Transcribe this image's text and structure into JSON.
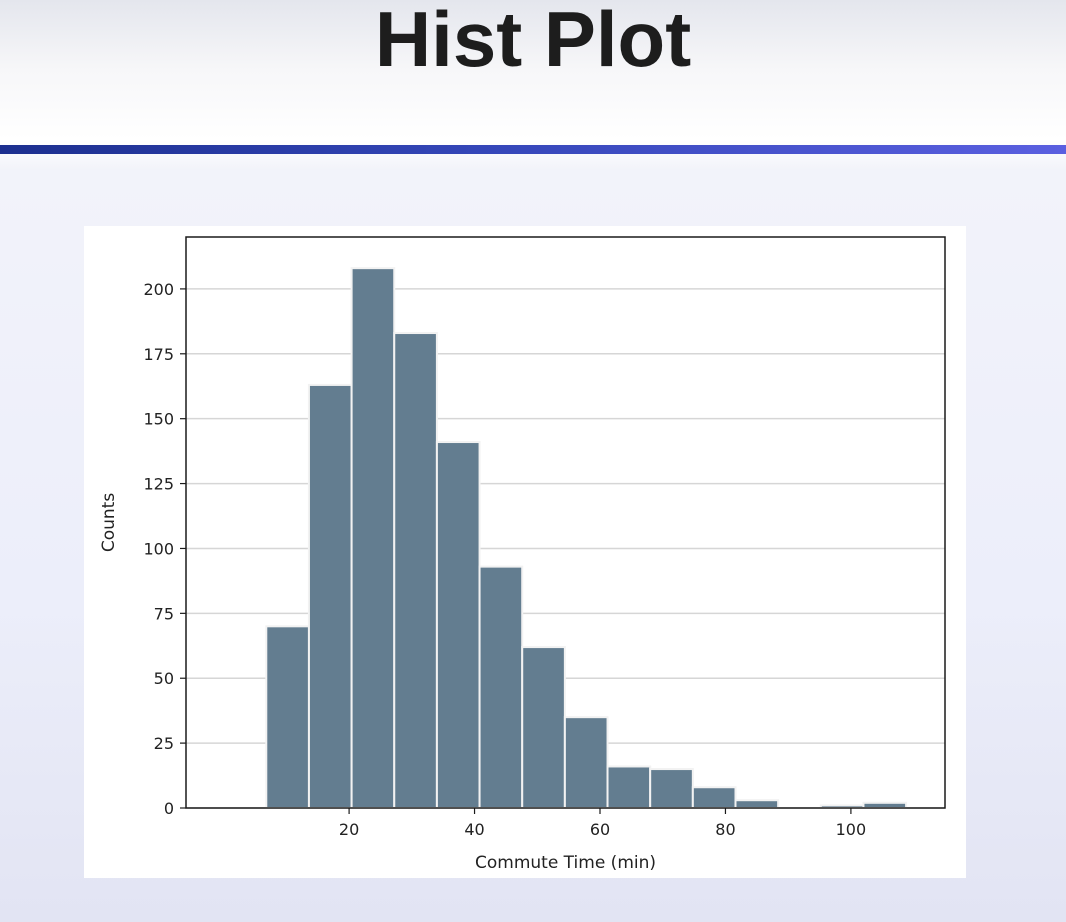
{
  "slide": {
    "title": "Hist Plot",
    "rule_color_start": "#1c2f8f",
    "rule_color_end": "#5a5fe0"
  },
  "chart_data": {
    "type": "bar",
    "subtype": "histogram",
    "xlabel": "Commute Time (min)",
    "ylabel": "Counts",
    "xlim": [
      -6,
      115
    ],
    "ylim": [
      0,
      220
    ],
    "xticks": [
      20,
      40,
      60,
      80,
      100
    ],
    "yticks": [
      0,
      25,
      50,
      75,
      100,
      125,
      150,
      175,
      200
    ],
    "grid": "horizontal",
    "bar_color": "#637d90",
    "bins": [
      {
        "x0": 6.8,
        "x1": 13.6,
        "count": 70
      },
      {
        "x0": 13.6,
        "x1": 20.4,
        "count": 163
      },
      {
        "x0": 20.4,
        "x1": 27.2,
        "count": 208
      },
      {
        "x0": 27.2,
        "x1": 34.0,
        "count": 183
      },
      {
        "x0": 34.0,
        "x1": 40.8,
        "count": 141
      },
      {
        "x0": 40.8,
        "x1": 47.6,
        "count": 93
      },
      {
        "x0": 47.6,
        "x1": 54.4,
        "count": 62
      },
      {
        "x0": 54.4,
        "x1": 61.2,
        "count": 35
      },
      {
        "x0": 61.2,
        "x1": 68.0,
        "count": 16
      },
      {
        "x0": 68.0,
        "x1": 74.8,
        "count": 15
      },
      {
        "x0": 74.8,
        "x1": 81.6,
        "count": 8
      },
      {
        "x0": 81.6,
        "x1": 88.4,
        "count": 3
      },
      {
        "x0": 88.4,
        "x1": 95.2,
        "count": 0
      },
      {
        "x0": 95.2,
        "x1": 102.0,
        "count": 1
      },
      {
        "x0": 102.0,
        "x1": 108.8,
        "count": 2
      }
    ]
  }
}
